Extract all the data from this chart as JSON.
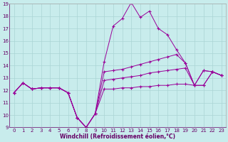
{
  "title": "",
  "xlabel": "Windchill (Refroidissement éolien,°C)",
  "ylabel": "",
  "background_color": "#c8ecec",
  "line_color": "#990099",
  "xlim": [
    -0.5,
    23.5
  ],
  "ylim": [
    9,
    19
  ],
  "yticks": [
    9,
    10,
    11,
    12,
    13,
    14,
    15,
    16,
    17,
    18,
    19
  ],
  "xticks": [
    0,
    1,
    2,
    3,
    4,
    5,
    6,
    7,
    8,
    9,
    10,
    11,
    12,
    13,
    14,
    15,
    16,
    17,
    18,
    19,
    20,
    21,
    22,
    23
  ],
  "series": [
    [
      11.8,
      12.6,
      12.1,
      12.2,
      12.2,
      12.2,
      11.8,
      9.8,
      9.0,
      10.1,
      14.3,
      17.2,
      17.8,
      19.1,
      17.9,
      18.4,
      17.0,
      16.5,
      15.3,
      14.2,
      12.4,
      13.6,
      13.5,
      13.2
    ],
    [
      11.8,
      12.6,
      12.1,
      12.2,
      12.2,
      12.2,
      11.8,
      9.8,
      9.0,
      10.1,
      13.5,
      13.6,
      13.7,
      13.9,
      14.1,
      14.3,
      14.5,
      14.7,
      14.9,
      14.2,
      12.4,
      13.6,
      13.5,
      13.2
    ],
    [
      11.8,
      12.6,
      12.1,
      12.2,
      12.2,
      12.2,
      11.8,
      9.8,
      9.0,
      10.1,
      12.8,
      12.9,
      13.0,
      13.1,
      13.2,
      13.4,
      13.5,
      13.6,
      13.7,
      13.8,
      12.4,
      12.4,
      13.5,
      13.2
    ],
    [
      11.8,
      12.6,
      12.1,
      12.2,
      12.2,
      12.2,
      11.8,
      9.8,
      9.0,
      10.1,
      12.1,
      12.1,
      12.2,
      12.2,
      12.3,
      12.3,
      12.4,
      12.4,
      12.5,
      12.5,
      12.4,
      12.4,
      13.5,
      13.2
    ]
  ],
  "grid_color": "#aad4d4",
  "marker": "+",
  "markersize": 3,
  "linewidth": 0.7,
  "tick_fontsize": 5,
  "xlabel_fontsize": 5.5,
  "tick_color": "#660066",
  "xlabel_color": "#660066"
}
